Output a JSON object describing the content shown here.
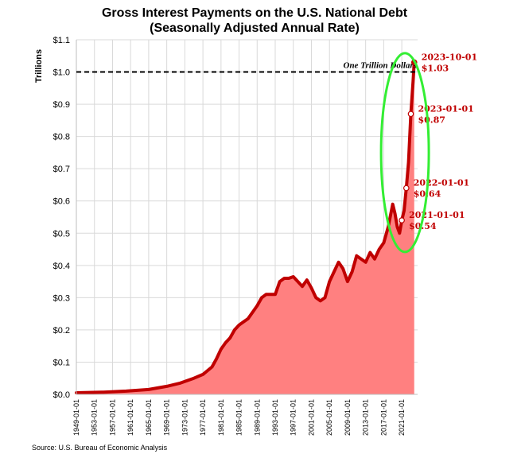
{
  "chart_data": {
    "type": "area",
    "title": "Gross Interest Payments on the U.S. National Debt",
    "subtitle": "(Seasonally Adjusted Annual Rate)",
    "ylabel": "Trillions",
    "xlabel": "",
    "source": "Source: U.S. Bureau of Economic Analysis",
    "ylim": [
      0,
      1.1
    ],
    "xlim": [
      1949,
      2024.5
    ],
    "grid": true,
    "y_ticks": [
      "$0.0",
      "$0.1",
      "$0.2",
      "$0.3",
      "$0.4",
      "$0.5",
      "$0.6",
      "$0.7",
      "$0.8",
      "$0.9",
      "$1.0",
      "$1.1"
    ],
    "x_ticks": [
      "1949-01-01",
      "1953-01-01",
      "1957-01-01",
      "1961-01-01",
      "1965-01-01",
      "1969-01-01",
      "1973-01-01",
      "1977-01-01",
      "1981-01-01",
      "1985-01-01",
      "1989-01-01",
      "1993-01-01",
      "1997-01-01",
      "2001-01-01",
      "2005-01-01",
      "2009-01-01",
      "2013-01-01",
      "2017-01-01",
      "2021-01-01"
    ],
    "reference_line": {
      "value": 1.0,
      "label": "One Trillion Dollars"
    },
    "series": [
      {
        "color": "#c00000",
        "fill_color": "#ff8080",
        "x": [
          1949,
          1955,
          1960,
          1965,
          1969,
          1972,
          1975,
          1977,
          1979,
          1980,
          1981,
          1982,
          1983,
          1984,
          1985,
          1986,
          1987,
          1988,
          1989,
          1990,
          1991,
          1992,
          1993,
          1994,
          1995,
          1996,
          1997,
          1998,
          1999,
          2000,
          2001,
          2002,
          2003,
          2004,
          2005,
          2006,
          2007,
          2008,
          2009,
          2010,
          2011,
          2012,
          2013,
          2014,
          2015,
          2016,
          2017,
          2018,
          2019,
          2019.5,
          2020,
          2020.5,
          2021,
          2021.5,
          2022,
          2022.5,
          2023,
          2023.5,
          2023.75
        ],
        "values": [
          0.005,
          0.007,
          0.01,
          0.015,
          0.025,
          0.035,
          0.05,
          0.062,
          0.085,
          0.11,
          0.14,
          0.16,
          0.175,
          0.2,
          0.215,
          0.225,
          0.235,
          0.255,
          0.275,
          0.3,
          0.31,
          0.31,
          0.31,
          0.35,
          0.36,
          0.36,
          0.365,
          0.35,
          0.335,
          0.355,
          0.33,
          0.3,
          0.29,
          0.3,
          0.35,
          0.38,
          0.41,
          0.39,
          0.35,
          0.38,
          0.43,
          0.42,
          0.41,
          0.44,
          0.42,
          0.45,
          0.47,
          0.52,
          0.59,
          0.56,
          0.52,
          0.5,
          0.54,
          0.57,
          0.64,
          0.72,
          0.87,
          0.97,
          1.03
        ]
      }
    ],
    "annotations": [
      {
        "date": "2021-01-01",
        "value_label": "$0.54",
        "x": 2021,
        "y": 0.54
      },
      {
        "date": "2022-01-01",
        "value_label": "$0.64",
        "x": 2022,
        "y": 0.64
      },
      {
        "date": "2023-01-01",
        "value_label": "$0.87",
        "x": 2023,
        "y": 0.87
      },
      {
        "date": "2023-10-01",
        "value_label": "$1.03",
        "x": 2023.75,
        "y": 1.03
      }
    ],
    "highlight": {
      "shape": "ellipse",
      "color": "#33ee33"
    }
  }
}
